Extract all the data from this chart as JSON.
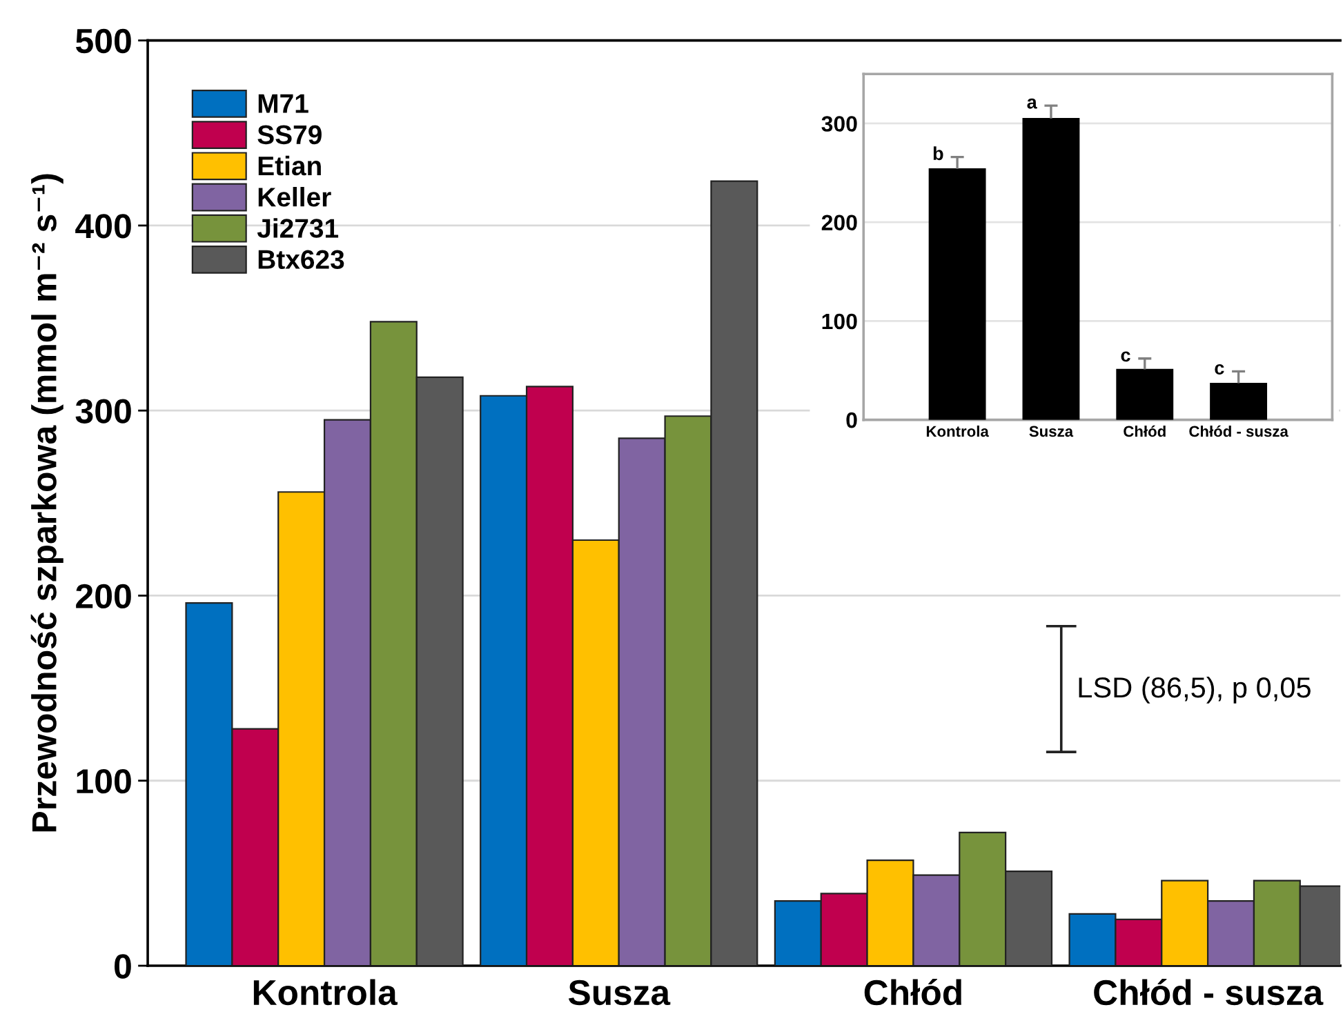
{
  "chart_data": [
    {
      "type": "bar",
      "categories": [
        "Kontrola",
        "Susza",
        "Chłód",
        "Chłód - susza"
      ],
      "ylabel": "Przewodność szparkowa (mmol m⁻² s⁻¹)",
      "ylim": [
        0,
        500
      ],
      "yticks": [
        0,
        100,
        200,
        300,
        400,
        500
      ],
      "grid": "y",
      "legend": "top left",
      "series": [
        {
          "name": "M71",
          "color": "#0070c0",
          "values": [
            196,
            308,
            35,
            28
          ]
        },
        {
          "name": "SS79",
          "color": "#c0004e",
          "values": [
            128,
            313,
            39,
            25
          ]
        },
        {
          "name": "Etian",
          "color": "#ffc000",
          "values": [
            256,
            230,
            57,
            46
          ]
        },
        {
          "name": "Keller",
          "color": "#8064a2",
          "values": [
            295,
            285,
            49,
            35
          ]
        },
        {
          "name": "Ji2731",
          "color": "#77933c",
          "values": [
            348,
            297,
            72,
            46
          ]
        },
        {
          "name": "Btx623",
          "color": "#595959",
          "values": [
            318,
            424,
            51,
            43
          ]
        }
      ],
      "annotations": [
        "LSD (86,5), p 0,05"
      ]
    },
    {
      "type": "bar",
      "categories": [
        "Kontrola",
        "Susza",
        "Chłód",
        "Chłód - susza"
      ],
      "ylim": [
        0,
        350
      ],
      "yticks": [
        0,
        100,
        200,
        300
      ],
      "grid": "y",
      "series": [
        {
          "color": "#000000",
          "values": [
            254,
            305,
            51,
            37
          ],
          "errors": [
            [
              254,
              266
            ],
            [
              305,
              318
            ],
            [
              51,
              62
            ],
            [
              37,
              49
            ]
          ]
        }
      ],
      "annotations": [
        {
          "text": "b",
          "x": "Kontrola",
          "y": 266
        },
        {
          "text": "a",
          "x": "Susza",
          "y": 318
        },
        {
          "text": "c",
          "x": "Chłód",
          "y": 62
        },
        {
          "text": "c",
          "x": "Chłód - susza",
          "y": 49
        }
      ]
    }
  ]
}
